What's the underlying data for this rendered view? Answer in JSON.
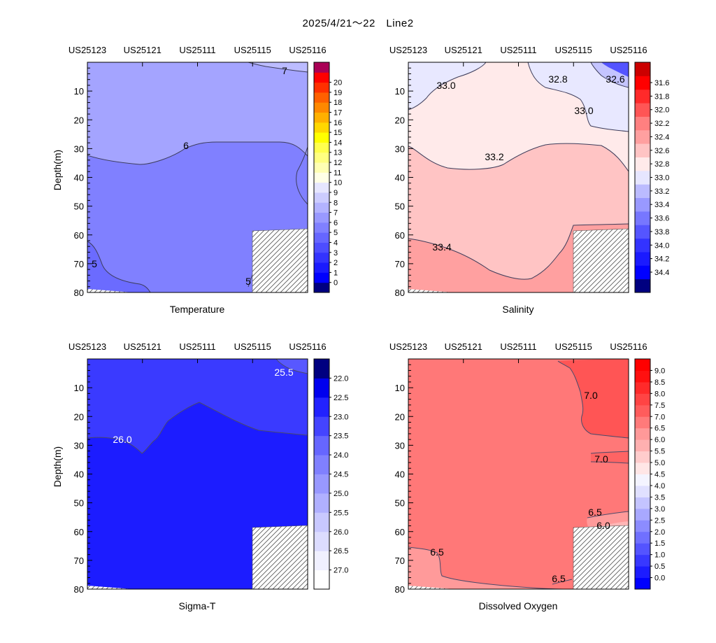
{
  "figure": {
    "title": "2025/4/21～22　Line2"
  },
  "chart_data": [
    {
      "type": "contour",
      "title": "Temperature",
      "ylabel": "Depth(m)",
      "ylim": [
        0,
        80
      ],
      "y_reversed": true,
      "y_ticks": [
        10,
        20,
        30,
        40,
        50,
        60,
        70,
        80
      ],
      "stations": [
        "US25123",
        "US25121",
        "US25111",
        "US25115",
        "US25116"
      ],
      "contour_labels": [
        "7",
        "6",
        "5",
        "5"
      ],
      "colorbar": {
        "ticks": [
          "0",
          "1",
          "2",
          "3",
          "4",
          "5",
          "6",
          "7",
          "8",
          "9",
          "10",
          "11",
          "12",
          "13",
          "14",
          "15",
          "16",
          "17",
          "18",
          "19",
          "20"
        ],
        "colors": [
          "#000080",
          "#0000ff",
          "#1a1aff",
          "#3333ff",
          "#4d4dff",
          "#6666ff",
          "#8080ff",
          "#9999ff",
          "#b3b3ff",
          "#ccccff",
          "#e6e6ff",
          "#ffffe6",
          "#ffffb3",
          "#ffff80",
          "#ffff4d",
          "#ffff00",
          "#ffd700",
          "#ffb000",
          "#ff8800",
          "#ff6000",
          "#ff3000",
          "#ff0000",
          "#aa0055"
        ]
      },
      "fill_colors": {
        "upper": "#a4a4ff",
        "lower": "#8080ff"
      }
    },
    {
      "type": "contour",
      "title": "Salinity",
      "ylim": [
        0,
        80
      ],
      "y_reversed": true,
      "y_ticks": [
        10,
        20,
        30,
        40,
        50,
        60,
        70,
        80
      ],
      "stations": [
        "US25123",
        "US25121",
        "US25111",
        "US25115",
        "US25116"
      ],
      "contour_labels": [
        "33.0",
        "32.8",
        "32.6",
        "33.0",
        "33.2",
        "33.4"
      ],
      "colorbar": {
        "ticks": [
          "31.6",
          "31.8",
          "32.0",
          "32.2",
          "32.4",
          "32.6",
          "32.8",
          "33.0",
          "33.2",
          "33.4",
          "33.6",
          "33.8",
          "34.0",
          "34.2",
          "34.4"
        ],
        "colors": [
          "#000080",
          "#0000ff",
          "#1a1aff",
          "#3333ff",
          "#5555ff",
          "#7777ff",
          "#9999ff",
          "#bbbbff",
          "#e6e6ff",
          "#ffeaea",
          "#ffc4c4",
          "#ffa0a0",
          "#ff8080",
          "#ff5555",
          "#ff2a2a",
          "#ff0000",
          "#cc0000"
        ]
      },
      "fill_colors": {
        "fresh": "#e8e8ff",
        "mid": "#ffeaea",
        "deep": "#ffc4c4",
        "deepest": "#ffa0a0"
      }
    },
    {
      "type": "contour",
      "title": "Sigma-T",
      "ylabel": "Depth(m)",
      "ylim": [
        0,
        80
      ],
      "y_reversed": true,
      "y_ticks": [
        10,
        20,
        30,
        40,
        50,
        60,
        70,
        80
      ],
      "stations": [
        "US25123",
        "US25121",
        "US25111",
        "US25115",
        "US25116"
      ],
      "contour_labels": [
        "25.5",
        "26.0"
      ],
      "colorbar": {
        "ticks": [
          "22.0",
          "22.5",
          "23.0",
          "23.5",
          "24.0",
          "24.5",
          "25.0",
          "25.5",
          "26.0",
          "26.5",
          "27.0"
        ],
        "colors": [
          "#ffffff",
          "#f0f0ff",
          "#dcdcff",
          "#c8c8ff",
          "#b0b0ff",
          "#9898ff",
          "#8080ff",
          "#6666ff",
          "#4444ff",
          "#2222ff",
          "#0000ee",
          "#000080"
        ]
      },
      "fill_colors": {
        "upper": "#3a3aff",
        "lower": "#1c1cff"
      }
    },
    {
      "type": "contour",
      "title": "Dissolved Oxygen",
      "ylim": [
        0,
        80
      ],
      "y_reversed": true,
      "y_ticks": [
        10,
        20,
        30,
        40,
        50,
        60,
        70,
        80
      ],
      "stations": [
        "US25123",
        "US25121",
        "US25111",
        "US25115",
        "US25116"
      ],
      "contour_labels": [
        "7.0",
        "7.0",
        "6.5",
        "6.0",
        "6.5",
        "6.5"
      ],
      "colorbar": {
        "ticks": [
          "0.0",
          "0.5",
          "1.0",
          "1.5",
          "2.0",
          "2.5",
          "3.0",
          "3.5",
          "4.0",
          "4.5",
          "5.0",
          "5.5",
          "6.0",
          "6.5",
          "7.0",
          "7.5",
          "8.0",
          "8.5",
          "9.0"
        ],
        "colors": [
          "#0000ff",
          "#1c1cff",
          "#3838ff",
          "#5454ff",
          "#7070ff",
          "#8c8cff",
          "#a8a8ff",
          "#c4c4ff",
          "#e0e0ff",
          "#f4f4ff",
          "#ffe6e6",
          "#ffcccc",
          "#ffb0b0",
          "#ff9999",
          "#ff7a7a",
          "#ff5c5c",
          "#ff4444",
          "#ff2a2a",
          "#ff1010",
          "#ff0000"
        ]
      },
      "fill_colors": {
        "main": "#ff7878",
        "high": "#ff5555",
        "low": "#ff9a9a"
      }
    }
  ]
}
